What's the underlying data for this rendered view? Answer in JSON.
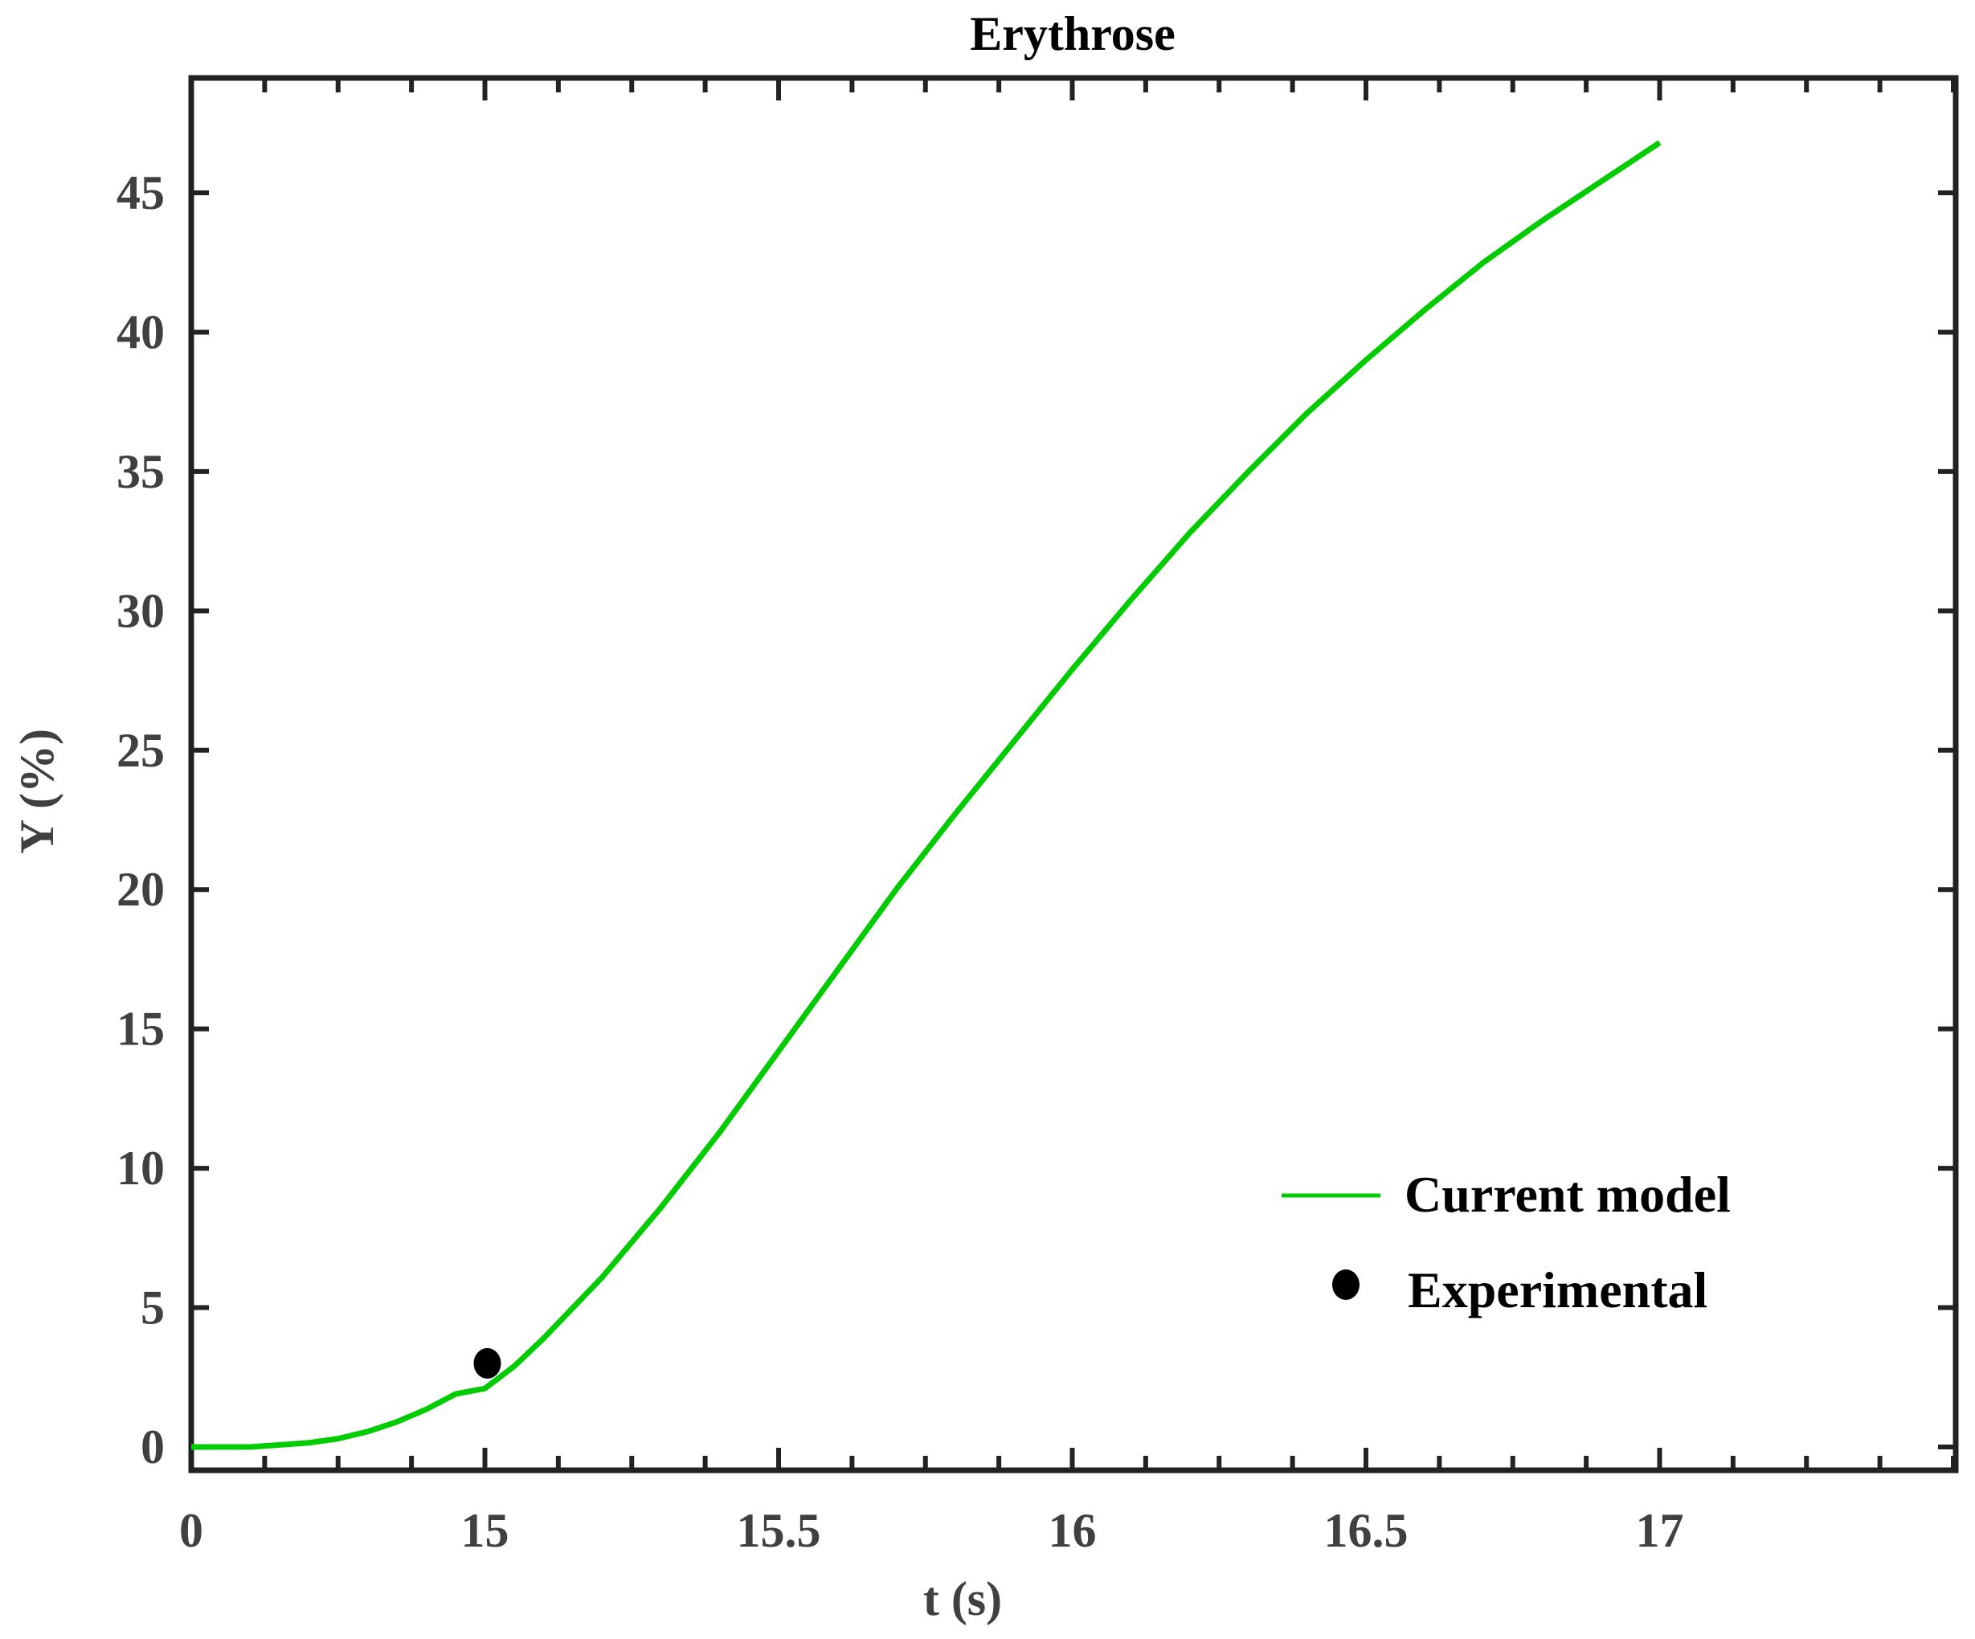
{
  "chart_data": {
    "type": "line",
    "title": "Erythrose",
    "xlabel": "t (s)",
    "ylabel": "Y (%)",
    "x_axis": {
      "broken": true,
      "note": "first tick labelled 0 then axis jumps to 15",
      "tick_labels": [
        "0",
        "15",
        "15.5",
        "16",
        "16.5",
        "17"
      ],
      "tick_positions_data": [
        14.5,
        15.0,
        15.5,
        16.0,
        16.5,
        17.0
      ],
      "range": [
        14.5,
        17.5
      ],
      "minor_step": 0.125
    },
    "y_axis": {
      "tick_labels": [
        "0",
        "5",
        "10",
        "15",
        "20",
        "25",
        "30",
        "35",
        "40",
        "45"
      ],
      "ticks": [
        0,
        5,
        10,
        15,
        20,
        25,
        30,
        35,
        40,
        45
      ],
      "range": [
        -0.8,
        49.5
      ]
    },
    "grid": false,
    "legend_position": "lower right",
    "series": [
      {
        "name": "Current model",
        "kind": "line",
        "color": "#00cc00",
        "x": [
          14.5,
          14.6,
          14.7,
          14.75,
          14.8,
          14.85,
          14.9,
          14.95,
          15.0,
          15.05,
          15.1,
          15.2,
          15.3,
          15.4,
          15.5,
          15.6,
          15.7,
          15.8,
          15.9,
          16.0,
          16.1,
          16.2,
          16.3,
          16.4,
          16.5,
          16.6,
          16.7,
          16.8,
          16.9,
          17.0
        ],
        "y": [
          0.0,
          0.0,
          0.15,
          0.3,
          0.55,
          0.9,
          1.35,
          1.9,
          2.1,
          2.9,
          3.9,
          6.1,
          8.6,
          11.3,
          14.2,
          17.1,
          20.0,
          22.7,
          25.3,
          27.9,
          30.4,
          32.8,
          35.0,
          37.1,
          39.0,
          40.8,
          42.5,
          44.0,
          45.4,
          46.8
        ]
      },
      {
        "name": "Experimental",
        "kind": "scatter",
        "color": "#000000",
        "x": [
          15.0
        ],
        "y": [
          3.0
        ]
      }
    ]
  },
  "labels": {
    "title": "Erythrose",
    "xlabel": "t (s)",
    "ylabel": "Y (%)",
    "x_ticks": [
      "0",
      "15",
      "15.5",
      "16",
      "16.5",
      "17"
    ],
    "y_ticks": [
      "0",
      "5",
      "10",
      "15",
      "20",
      "25",
      "30",
      "35",
      "40",
      "45"
    ],
    "legend": {
      "model": "Current model",
      "experimental": "Experimental"
    }
  },
  "colors": {
    "model": "#00cc00",
    "experimental": "#000000",
    "axis": "#222222",
    "tick_text": "#404040"
  }
}
